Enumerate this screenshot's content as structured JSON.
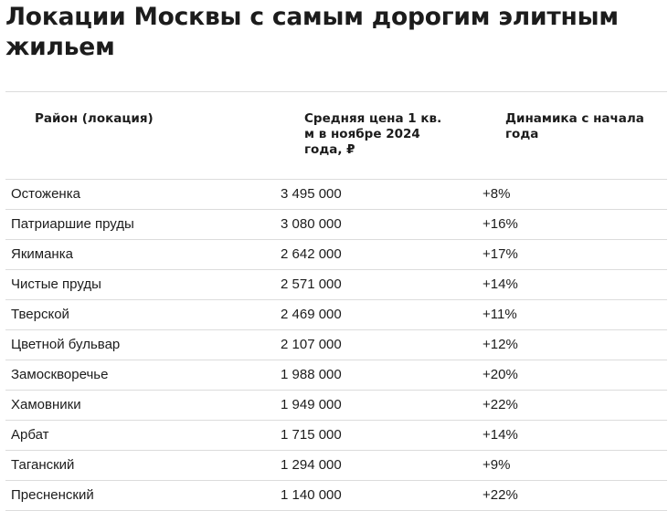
{
  "title": "Локации Москвы с самым дорогим элитным жильем",
  "table": {
    "headers": {
      "district": "Район (локация)",
      "price": "Средняя цена 1 кв. м в ноябре 2024 года, ₽",
      "dynamics": "Динамика с начала года"
    },
    "rows": [
      {
        "district": "Остоженка",
        "price": "3 495 000",
        "dynamics": "+8%"
      },
      {
        "district": "Патриаршие пруды",
        "price": "3 080 000",
        "dynamics": "+16%"
      },
      {
        "district": "Якиманка",
        "price": "2 642 000",
        "dynamics": "+17%"
      },
      {
        "district": "Чистые пруды",
        "price": "2 571 000",
        "dynamics": "+14%"
      },
      {
        "district": "Тверской",
        "price": "2 469 000",
        "dynamics": "+11%"
      },
      {
        "district": "Цветной бульвар",
        "price": "2 107 000",
        "dynamics": "+12%"
      },
      {
        "district": "Замоскворечье",
        "price": "1 988 000",
        "dynamics": "+20%"
      },
      {
        "district": "Хамовники",
        "price": "1 949 000",
        "dynamics": "+22%"
      },
      {
        "district": "Арбат",
        "price": "1 715 000",
        "dynamics": "+14%"
      },
      {
        "district": "Таганский",
        "price": "1 294 000",
        "dynamics": "+9%"
      },
      {
        "district": "Пресненский",
        "price": "1 140 000",
        "dynamics": "+22%"
      }
    ]
  }
}
